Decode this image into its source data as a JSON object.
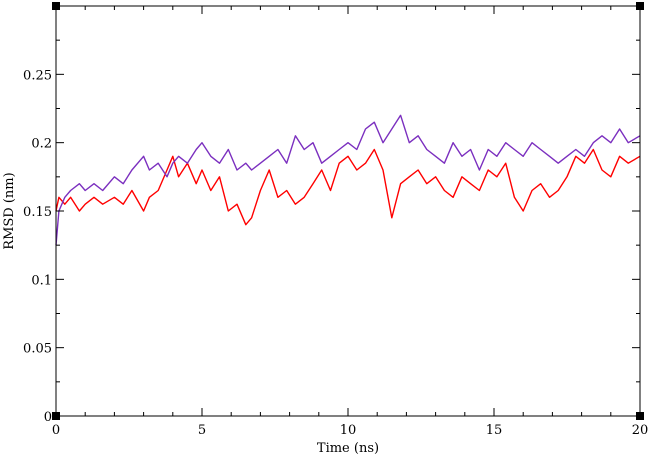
{
  "chart_data": {
    "type": "line",
    "title": "",
    "xlabel": "Time (ns)",
    "ylabel": "RMSD (nm)",
    "xlim": [
      0,
      20
    ],
    "ylim": [
      0,
      0.3
    ],
    "x_ticks": [
      0,
      5,
      10,
      15,
      20
    ],
    "x_tick_labels": [
      "0",
      "5",
      "10",
      "15",
      "20"
    ],
    "y_ticks": [
      0,
      0.05,
      0.1,
      0.15,
      0.2,
      0.25
    ],
    "y_tick_labels": [
      "0",
      "0.05",
      "0.1",
      "0.15",
      "0.2",
      "0.25"
    ],
    "grid": false,
    "legend": "none",
    "series": [
      {
        "color": "#ff0000",
        "x": [
          0,
          0.1,
          0.3,
          0.5,
          0.8,
          1.0,
          1.3,
          1.6,
          2.0,
          2.3,
          2.6,
          3.0,
          3.2,
          3.5,
          3.8,
          4.0,
          4.2,
          4.5,
          4.8,
          5.0,
          5.3,
          5.6,
          5.9,
          6.2,
          6.5,
          6.7,
          7.0,
          7.3,
          7.6,
          7.9,
          8.2,
          8.5,
          8.8,
          9.1,
          9.4,
          9.7,
          10.0,
          10.3,
          10.6,
          10.9,
          11.2,
          11.5,
          11.8,
          12.1,
          12.4,
          12.7,
          13.0,
          13.3,
          13.6,
          13.9,
          14.2,
          14.5,
          14.8,
          15.1,
          15.4,
          15.7,
          16.0,
          16.3,
          16.6,
          16.9,
          17.2,
          17.5,
          17.8,
          18.1,
          18.4,
          18.7,
          19.0,
          19.3,
          19.6,
          20.0
        ],
        "values": [
          0.15,
          0.16,
          0.155,
          0.16,
          0.15,
          0.155,
          0.16,
          0.155,
          0.16,
          0.155,
          0.165,
          0.15,
          0.16,
          0.165,
          0.18,
          0.19,
          0.175,
          0.185,
          0.17,
          0.18,
          0.165,
          0.175,
          0.15,
          0.155,
          0.14,
          0.145,
          0.165,
          0.18,
          0.16,
          0.165,
          0.155,
          0.16,
          0.17,
          0.18,
          0.165,
          0.185,
          0.19,
          0.18,
          0.185,
          0.195,
          0.18,
          0.145,
          0.17,
          0.175,
          0.18,
          0.17,
          0.175,
          0.165,
          0.16,
          0.175,
          0.17,
          0.165,
          0.18,
          0.175,
          0.185,
          0.16,
          0.15,
          0.165,
          0.17,
          0.16,
          0.165,
          0.175,
          0.19,
          0.185,
          0.195,
          0.18,
          0.175,
          0.19,
          0.185,
          0.19
        ]
      },
      {
        "color": "#7b2fbf",
        "x": [
          0,
          0.1,
          0.3,
          0.5,
          0.8,
          1.0,
          1.3,
          1.6,
          2.0,
          2.3,
          2.6,
          3.0,
          3.2,
          3.5,
          3.8,
          4.0,
          4.2,
          4.5,
          4.8,
          5.0,
          5.3,
          5.6,
          5.9,
          6.2,
          6.5,
          6.7,
          7.0,
          7.3,
          7.6,
          7.9,
          8.2,
          8.5,
          8.8,
          9.1,
          9.4,
          9.7,
          10.0,
          10.3,
          10.6,
          10.9,
          11.2,
          11.5,
          11.8,
          12.1,
          12.4,
          12.7,
          13.0,
          13.3,
          13.6,
          13.9,
          14.2,
          14.5,
          14.8,
          15.1,
          15.4,
          15.7,
          16.0,
          16.3,
          16.6,
          16.9,
          17.2,
          17.5,
          17.8,
          18.1,
          18.4,
          18.7,
          19.0,
          19.3,
          19.6,
          20.0
        ],
        "values": [
          0.125,
          0.15,
          0.16,
          0.165,
          0.17,
          0.165,
          0.17,
          0.165,
          0.175,
          0.17,
          0.18,
          0.19,
          0.18,
          0.185,
          0.175,
          0.185,
          0.19,
          0.185,
          0.195,
          0.2,
          0.19,
          0.185,
          0.195,
          0.18,
          0.185,
          0.18,
          0.185,
          0.19,
          0.195,
          0.185,
          0.205,
          0.195,
          0.2,
          0.185,
          0.19,
          0.195,
          0.2,
          0.195,
          0.21,
          0.215,
          0.2,
          0.21,
          0.22,
          0.2,
          0.205,
          0.195,
          0.19,
          0.185,
          0.2,
          0.19,
          0.195,
          0.18,
          0.195,
          0.19,
          0.2,
          0.195,
          0.19,
          0.2,
          0.195,
          0.19,
          0.185,
          0.19,
          0.195,
          0.19,
          0.2,
          0.205,
          0.2,
          0.21,
          0.2,
          0.205
        ]
      }
    ]
  }
}
